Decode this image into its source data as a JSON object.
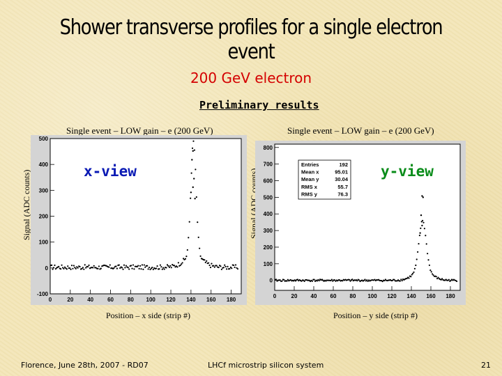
{
  "slide": {
    "title": "Shower transverse profiles for a single electron event",
    "subtitle": "200 GeV electron",
    "preliminary": "Preliminary results",
    "footer_left": "Florence, June 28th, 2007 - RD07",
    "footer_center": "LHCf microstrip silicon system",
    "page_number": "21"
  },
  "chart_data": [
    {
      "type": "scatter",
      "title": "Single event – LOW gain – e (200 GeV)",
      "xlabel": "Position – x side (strip #)",
      "ylabel": "Signal (ADC counts)",
      "view_label": "x-view",
      "view_label_color": "#0a1ab4",
      "xlim": [
        0,
        190
      ],
      "ylim": [
        -100,
        500
      ],
      "xticks": [
        0,
        20,
        40,
        60,
        80,
        100,
        120,
        140,
        160,
        180
      ],
      "yticks": [
        -100,
        0,
        100,
        200,
        300,
        400,
        500
      ],
      "profile": {
        "baseline": 3,
        "noise": 9,
        "peak_x": 142,
        "peak_height": 440,
        "peak_width": 2.6,
        "tail_height": 45,
        "tail_width": 9
      },
      "outliers": [
        [
          142,
          452
        ],
        [
          141,
          418
        ],
        [
          143,
          345
        ],
        [
          142,
          312
        ],
        [
          140,
          292
        ],
        [
          144,
          268
        ]
      ]
    },
    {
      "type": "scatter",
      "title": "Single event – LOW gain – e (200 GeV)",
      "xlabel": "Position – y side (strip #)",
      "ylabel": "Signal (ADC counts)",
      "view_label": "y-view",
      "view_label_color": "#0a8c1a",
      "xlim": [
        0,
        190
      ],
      "ylim": [
        -60,
        820
      ],
      "xticks": [
        0,
        20,
        40,
        60,
        80,
        100,
        120,
        140,
        160,
        180
      ],
      "yticks": [
        0,
        100,
        200,
        300,
        400,
        500,
        600,
        700,
        800
      ],
      "profile": {
        "baseline": 0,
        "noise": 6,
        "peak_x": 151,
        "peak_height": 300,
        "peak_width": 3.6,
        "tail_height": 60,
        "tail_width": 9
      },
      "outliers": [
        [
          151,
          508
        ],
        [
          152,
          500
        ],
        [
          150,
          392
        ],
        [
          151,
          330
        ],
        [
          149,
          285
        ]
      ],
      "stats": {
        "title": "Entries",
        "rows": [
          [
            "Entries",
            "192"
          ],
          [
            "Mean x",
            "95.01"
          ],
          [
            "Mean y",
            "30.04"
          ],
          [
            "RMS x",
            "55.7"
          ],
          [
            "RMS y",
            "76.3"
          ]
        ]
      }
    }
  ]
}
